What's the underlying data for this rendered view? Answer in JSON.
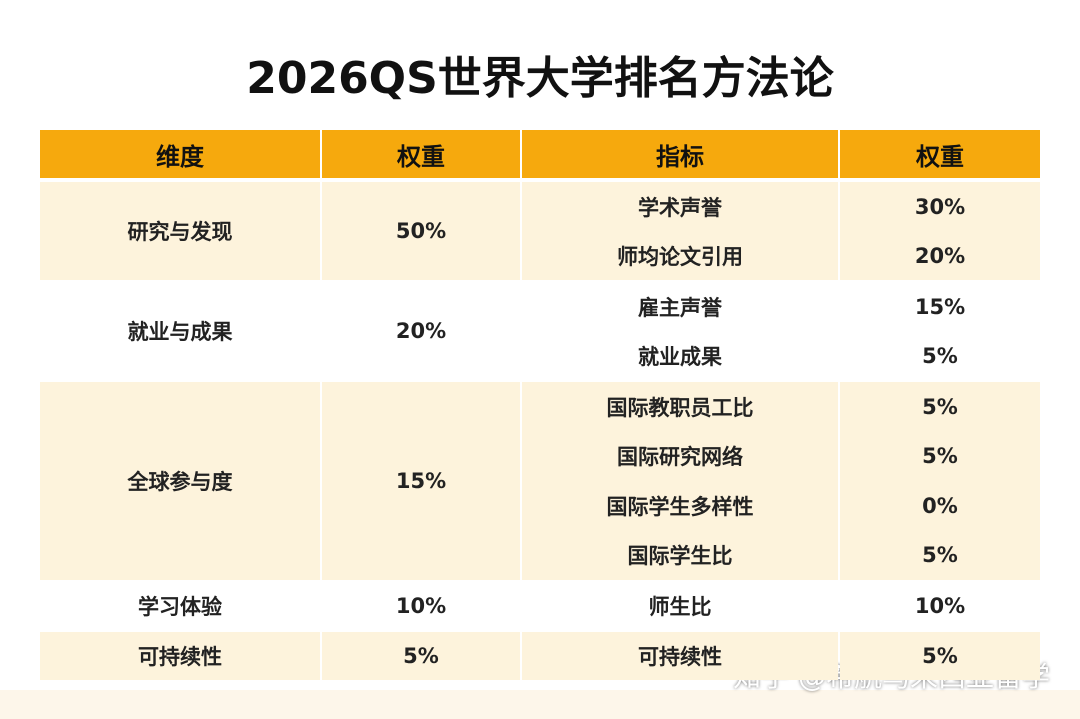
{
  "title": "2026QS世界大学排名方法论",
  "table": {
    "header": [
      "维度",
      "权重",
      "指标",
      "权重"
    ],
    "groups": [
      {
        "dimension": "研究与发现",
        "weight": "50%",
        "indicators": [
          [
            "学术声誉",
            "30%"
          ],
          [
            "师均论文引用",
            "20%"
          ]
        ]
      },
      {
        "dimension": "就业与成果",
        "weight": "20%",
        "indicators": [
          [
            "雇主声誉",
            "15%"
          ],
          [
            "就业成果",
            "5%"
          ]
        ]
      },
      {
        "dimension": "全球参与度",
        "weight": "15%",
        "indicators": [
          [
            "国际教职员工比",
            "5%"
          ],
          [
            "国际研究网络",
            "5%"
          ],
          [
            "国际学生多样性",
            "0%"
          ],
          [
            "国际学生比",
            "5%"
          ]
        ]
      },
      {
        "dimension": "学习体验",
        "weight": "10%",
        "indicators": [
          [
            "师生比",
            "10%"
          ]
        ]
      },
      {
        "dimension": "可持续性",
        "weight": "5%",
        "indicators": [
          [
            "可持续性",
            "5%"
          ]
        ]
      }
    ]
  },
  "watermark": "知乎 @希航马来西亚留学"
}
